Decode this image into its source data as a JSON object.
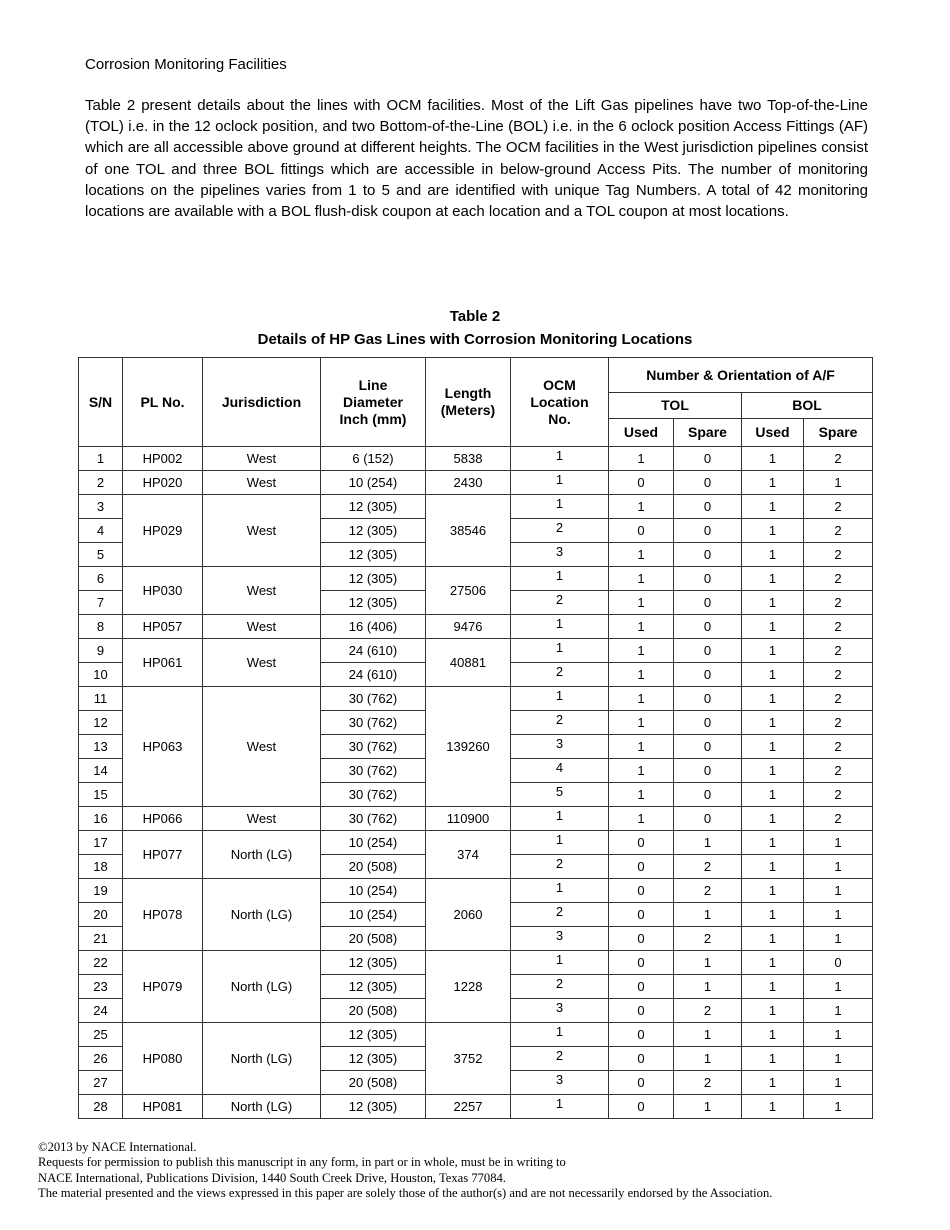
{
  "heading": "Corrosion Monitoring Facilities",
  "paragraph": "Table 2 present details about the lines with OCM facilities.  Most of the Lift Gas pipelines have two Top-of-the-Line (TOL) i.e. in the 12 oclock position, and two Bottom-of-the-Line (BOL) i.e. in the 6 oclock position Access Fittings (AF) which are all accessible above ground at different heights.  The OCM facilities in the West jurisdiction pipelines consist of one TOL and three BOL fittings which are accessible in below-ground Access Pits.  The number of monitoring locations on the pipelines varies from 1 to 5 and are identified with unique Tag Numbers.  A total of 42 monitoring locations are available with a BOL flush-disk coupon at each location and a TOL coupon at most locations.",
  "table": {
    "title_line1": "Table 2",
    "title_line2": "Details of HP Gas Lines with Corrosion Monitoring Locations",
    "headers": {
      "sn": "S/N",
      "pl_no": "PL No.",
      "jurisdiction": "Jurisdiction",
      "line_diameter": "Line Diameter Inch (mm)",
      "length": "Length (Meters)",
      "ocm": "OCM Location No.",
      "af": {
        "group_label": "Number & Orientation of A/F",
        "tol": {
          "label": "TOL",
          "used": "Used",
          "spare": "Spare"
        },
        "bol": {
          "label": "BOL",
          "used": "Used",
          "spare": "Spare"
        }
      }
    },
    "groups": [
      {
        "pl_no": "HP002",
        "jurisdiction": "West",
        "length": "5838",
        "rows": [
          {
            "sn": "1",
            "diameter": "6 (152)",
            "ocm": "1",
            "tol_used": "1",
            "tol_spare": "0",
            "bol_used": "1",
            "bol_spare": "2"
          }
        ]
      },
      {
        "pl_no": "HP020",
        "jurisdiction": "West",
        "length": "2430",
        "rows": [
          {
            "sn": "2",
            "diameter": "10 (254)",
            "ocm": "1",
            "tol_used": "0",
            "tol_spare": "0",
            "bol_used": "1",
            "bol_spare": "1"
          }
        ]
      },
      {
        "pl_no": "HP029",
        "jurisdiction": "West",
        "length": "38546",
        "rows": [
          {
            "sn": "3",
            "diameter": "12 (305)",
            "ocm": "1",
            "tol_used": "1",
            "tol_spare": "0",
            "bol_used": "1",
            "bol_spare": "2"
          },
          {
            "sn": "4",
            "diameter": "12 (305)",
            "ocm": "2",
            "tol_used": "0",
            "tol_spare": "0",
            "bol_used": "1",
            "bol_spare": "2"
          },
          {
            "sn": "5",
            "diameter": "12 (305)",
            "ocm": "3",
            "tol_used": "1",
            "tol_spare": "0",
            "bol_used": "1",
            "bol_spare": "2"
          }
        ]
      },
      {
        "pl_no": "HP030",
        "jurisdiction": "West",
        "length": "27506",
        "rows": [
          {
            "sn": "6",
            "diameter": "12 (305)",
            "ocm": "1",
            "tol_used": "1",
            "tol_spare": "0",
            "bol_used": "1",
            "bol_spare": "2"
          },
          {
            "sn": "7",
            "diameter": "12 (305)",
            "ocm": "2",
            "tol_used": "1",
            "tol_spare": "0",
            "bol_used": "1",
            "bol_spare": "2"
          }
        ]
      },
      {
        "pl_no": "HP057",
        "jurisdiction": "West",
        "length": "9476",
        "rows": [
          {
            "sn": "8",
            "diameter": "16 (406)",
            "ocm": "1",
            "tol_used": "1",
            "tol_spare": "0",
            "bol_used": "1",
            "bol_spare": "2"
          }
        ]
      },
      {
        "pl_no": "HP061",
        "jurisdiction": "West",
        "length": "40881",
        "rows": [
          {
            "sn": "9",
            "diameter": "24 (610)",
            "ocm": "1",
            "tol_used": "1",
            "tol_spare": "0",
            "bol_used": "1",
            "bol_spare": "2"
          },
          {
            "sn": "10",
            "diameter": "24 (610)",
            "ocm": "2",
            "tol_used": "1",
            "tol_spare": "0",
            "bol_used": "1",
            "bol_spare": "2"
          }
        ]
      },
      {
        "pl_no": "HP063",
        "jurisdiction": "West",
        "length": "139260",
        "rows": [
          {
            "sn": "11",
            "diameter": "30 (762)",
            "ocm": "1",
            "tol_used": "1",
            "tol_spare": "0",
            "bol_used": "1",
            "bol_spare": "2"
          },
          {
            "sn": "12",
            "diameter": "30 (762)",
            "ocm": "2",
            "tol_used": "1",
            "tol_spare": "0",
            "bol_used": "1",
            "bol_spare": "2"
          },
          {
            "sn": "13",
            "diameter": "30 (762)",
            "ocm": "3",
            "tol_used": "1",
            "tol_spare": "0",
            "bol_used": "1",
            "bol_spare": "2"
          },
          {
            "sn": "14",
            "diameter": "30 (762)",
            "ocm": "4",
            "tol_used": "1",
            "tol_spare": "0",
            "bol_used": "1",
            "bol_spare": "2"
          },
          {
            "sn": "15",
            "diameter": "30 (762)",
            "ocm": "5",
            "tol_used": "1",
            "tol_spare": "0",
            "bol_used": "1",
            "bol_spare": "2"
          }
        ]
      },
      {
        "pl_no": "HP066",
        "jurisdiction": "West",
        "length": "110900",
        "rows": [
          {
            "sn": "16",
            "diameter": "30 (762)",
            "ocm": "1",
            "tol_used": "1",
            "tol_spare": "0",
            "bol_used": "1",
            "bol_spare": "2"
          }
        ]
      },
      {
        "pl_no": "HP077",
        "jurisdiction": "North (LG)",
        "length": "374",
        "rows": [
          {
            "sn": "17",
            "diameter": "10 (254)",
            "ocm": "1",
            "tol_used": "0",
            "tol_spare": "1",
            "bol_used": "1",
            "bol_spare": "1"
          },
          {
            "sn": "18",
            "diameter": "20 (508)",
            "ocm": "2",
            "tol_used": "0",
            "tol_spare": "2",
            "bol_used": "1",
            "bol_spare": "1"
          }
        ]
      },
      {
        "pl_no": "HP078",
        "jurisdiction": "North (LG)",
        "length": "2060",
        "rows": [
          {
            "sn": "19",
            "diameter": "10 (254)",
            "ocm": "1",
            "tol_used": "0",
            "tol_spare": "2",
            "bol_used": "1",
            "bol_spare": "1"
          },
          {
            "sn": "20",
            "diameter": "10 (254)",
            "ocm": "2",
            "tol_used": "0",
            "tol_spare": "1",
            "bol_used": "1",
            "bol_spare": "1"
          },
          {
            "sn": "21",
            "diameter": "20 (508)",
            "ocm": "3",
            "tol_used": "0",
            "tol_spare": "2",
            "bol_used": "1",
            "bol_spare": "1"
          }
        ]
      },
      {
        "pl_no": "HP079",
        "jurisdiction": "North (LG)",
        "length": "1228",
        "rows": [
          {
            "sn": "22",
            "diameter": "12 (305)",
            "ocm": "1",
            "tol_used": "0",
            "tol_spare": "1",
            "bol_used": "1",
            "bol_spare": "0"
          },
          {
            "sn": "23",
            "diameter": "12 (305)",
            "ocm": "2",
            "tol_used": "0",
            "tol_spare": "1",
            "bol_used": "1",
            "bol_spare": "1"
          },
          {
            "sn": "24",
            "diameter": "20 (508)",
            "ocm": "3",
            "tol_used": "0",
            "tol_spare": "2",
            "bol_used": "1",
            "bol_spare": "1"
          }
        ]
      },
      {
        "pl_no": "HP080",
        "jurisdiction": "North (LG)",
        "length": "3752",
        "rows": [
          {
            "sn": "25",
            "diameter": "12 (305)",
            "ocm": "1",
            "tol_used": "0",
            "tol_spare": "1",
            "bol_used": "1",
            "bol_spare": "1"
          },
          {
            "sn": "26",
            "diameter": "12 (305)",
            "ocm": "2",
            "tol_used": "0",
            "tol_spare": "1",
            "bol_used": "1",
            "bol_spare": "1"
          },
          {
            "sn": "27",
            "diameter": "20 (508)",
            "ocm": "3",
            "tol_used": "0",
            "tol_spare": "2",
            "bol_used": "1",
            "bol_spare": "1"
          }
        ]
      },
      {
        "pl_no": "HP081",
        "jurisdiction": "North (LG)",
        "length": "2257",
        "rows": [
          {
            "sn": "28",
            "diameter": "12 (305)",
            "ocm": "1",
            "tol_used": "0",
            "tol_spare": "1",
            "bol_used": "1",
            "bol_spare": "1"
          }
        ]
      }
    ]
  },
  "footer": {
    "lines": [
      "©2013 by NACE International.",
      "Requests for permission to publish this manuscript in any form, in part or in whole, must be in writing to",
      "NACE International, Publications Division, 1440 South Creek Drive, Houston, Texas 77084.",
      "The material presented and the views expressed in this paper are solely those of the author(s) and are not necessarily endorsed by the Association."
    ]
  }
}
